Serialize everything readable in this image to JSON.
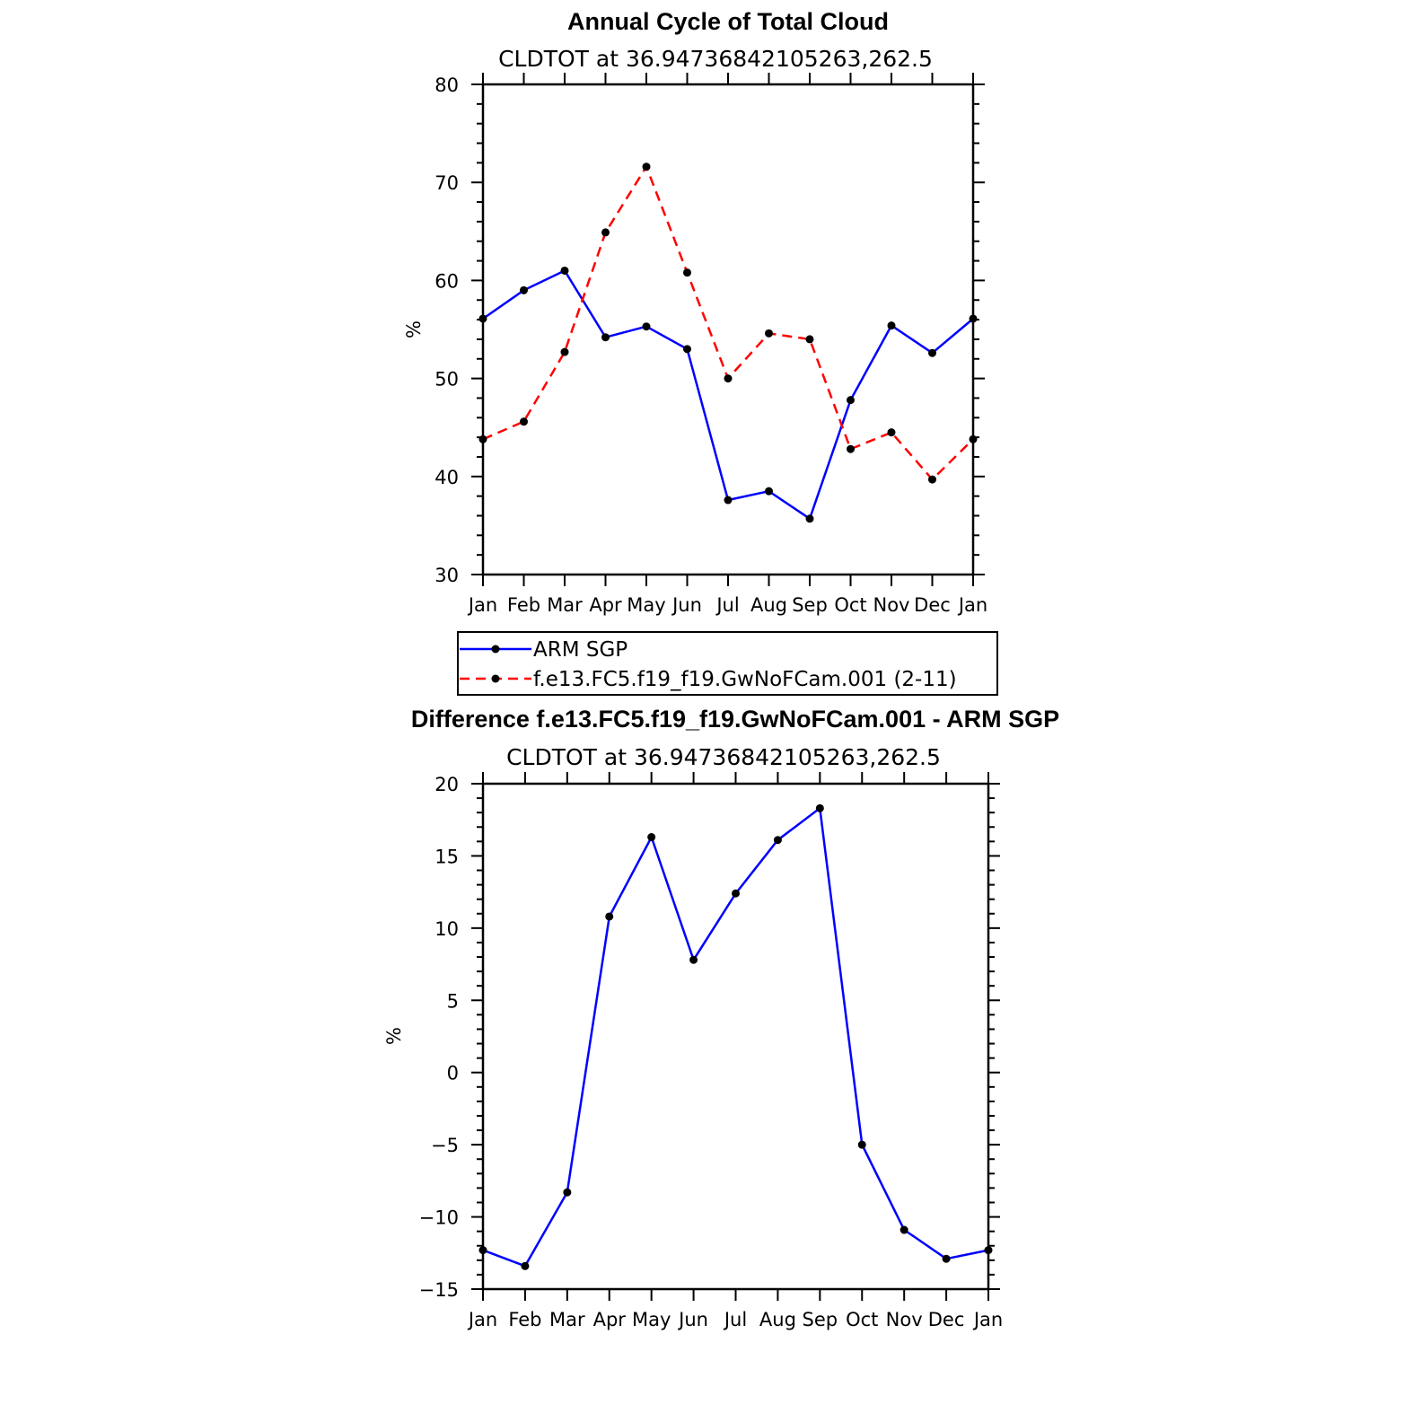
{
  "chart_data": [
    {
      "type": "line",
      "title": "Annual Cycle of Total Cloud",
      "subtitle": "CLDTOT at 36.94736842105263,262.5",
      "xlabel": "",
      "ylabel": "%",
      "categories": [
        "Jan",
        "Feb",
        "Mar",
        "Apr",
        "May",
        "Jun",
        "Jul",
        "Aug",
        "Sep",
        "Oct",
        "Nov",
        "Dec",
        "Jan"
      ],
      "ylim": [
        30,
        80
      ],
      "yticks": [
        30,
        40,
        50,
        60,
        70,
        80
      ],
      "grid": false,
      "legend": "below",
      "series": [
        {
          "name": "ARM SGP",
          "color": "#0000ff",
          "dash": "solid",
          "values": [
            56.1,
            59.0,
            61.0,
            54.2,
            55.3,
            53.0,
            37.6,
            38.5,
            35.7,
            47.8,
            55.4,
            52.6,
            56.1
          ]
        },
        {
          "name": "f.e13.FC5.f19_f19.GwNoFCam.001 (2-11)",
          "color": "#ff0000",
          "dash": "dashed",
          "values": [
            43.8,
            45.6,
            52.7,
            64.9,
            71.6,
            60.8,
            50.0,
            54.6,
            54.0,
            42.8,
            44.5,
            39.7,
            43.8
          ]
        }
      ]
    },
    {
      "type": "line",
      "title": "Difference f.e13.FC5.f19_f19.GwNoFCam.001 - ARM SGP",
      "subtitle": "CLDTOT at 36.94736842105263,262.5",
      "xlabel": "",
      "ylabel": "%",
      "categories": [
        "Jan",
        "Feb",
        "Mar",
        "Apr",
        "May",
        "Jun",
        "Jul",
        "Aug",
        "Sep",
        "Oct",
        "Nov",
        "Dec",
        "Jan"
      ],
      "ylim": [
        -15,
        20
      ],
      "yticks": [
        -15,
        -10,
        -5,
        0,
        5,
        10,
        15,
        20
      ],
      "ytick_labels": [
        "−15",
        "−10",
        "−5",
        "0",
        "5",
        "10",
        "15",
        "20"
      ],
      "grid": false,
      "series": [
        {
          "color": "#0000ff",
          "dash": "solid",
          "values": [
            -12.3,
            -13.4,
            -8.3,
            10.8,
            16.3,
            7.8,
            12.4,
            16.1,
            18.3,
            -5.0,
            -10.9,
            -12.9,
            -12.3
          ]
        }
      ]
    }
  ]
}
